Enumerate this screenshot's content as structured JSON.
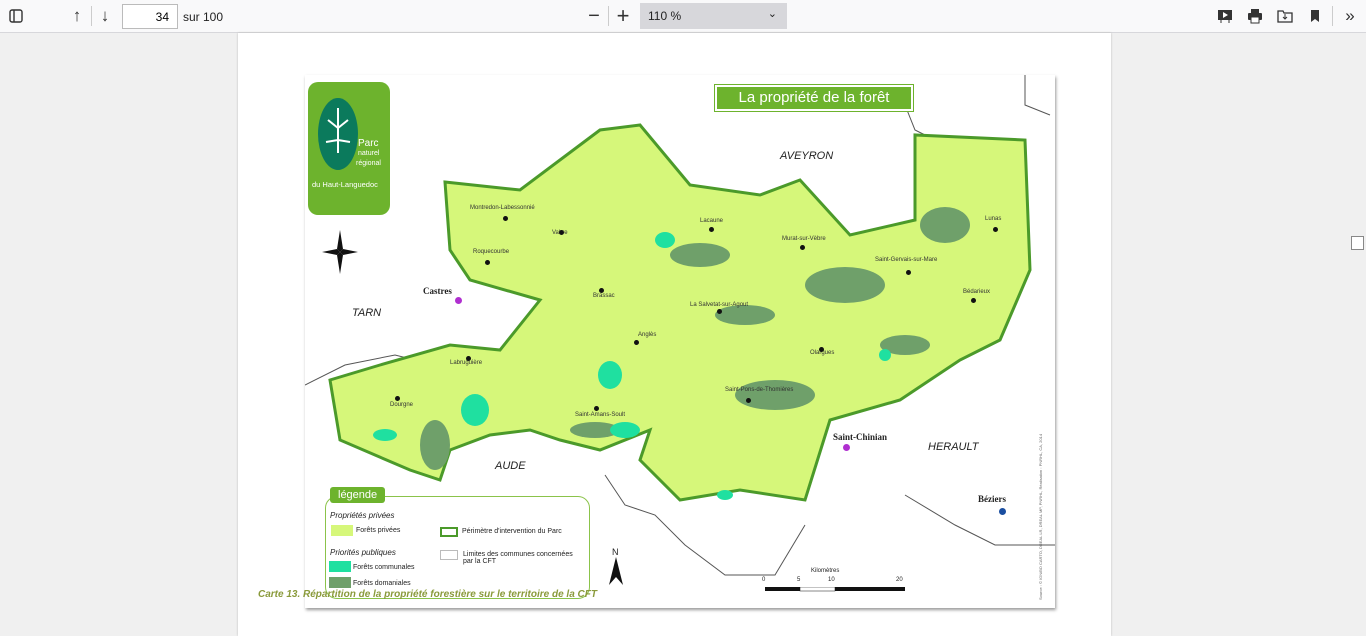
{
  "toolbar": {
    "page_number": "34",
    "page_total": "sur 100",
    "zoom": "110 %",
    "icons": [
      "sidebar-toggle-icon",
      "arrow-up-icon",
      "arrow-down-icon",
      "minus-icon",
      "plus-icon",
      "presentation-icon",
      "print-icon",
      "save-icon",
      "bookmark-icon",
      "double-chevron-right-icon"
    ]
  },
  "map": {
    "title": "La propriété de la forêt",
    "logo": {
      "line1": "Parc",
      "line2": "naturel",
      "line3": "régional",
      "line4": "du Haut-Languedoc"
    },
    "regions": {
      "aveyron": "AVEYRON",
      "tarn": "TARN",
      "herault": "HERAULT",
      "aude": "AUDE"
    },
    "major_towns": {
      "castres": "Castres",
      "saint_chinian": "Saint-Chinian",
      "beziers": "Béziers"
    },
    "towns": [
      "Montredon-Labessonnié",
      "Vabre",
      "Lacaune",
      "Murat-sur-Vèbre",
      "Roquecourbe",
      "Brassac",
      "Saint-Gervais-sur-Mare",
      "Lunas",
      "La Salvetat-sur-Agout",
      "Bédarieux",
      "Anglès",
      "Olargues",
      "Labruguière",
      "Saint-Pons-de-Thomières",
      "Dourgne",
      "Saint-Amans-Soult"
    ],
    "legend": {
      "tab": "légende",
      "private_heading": "Propriétés privées",
      "private_forests": "Forêts privées",
      "public_heading": "Priorités publiques",
      "communal": "Forêts communales",
      "domanial": "Forêts domaniales",
      "perimeter": "Périmètre d'intervention du Parc",
      "limits": "Limites des communes concernées par la CFT"
    },
    "colors": {
      "private": "#d6f77a",
      "communal": "#1fe0a0",
      "domanial": "#6fa06a",
      "perimeter": "#4b9a2a"
    },
    "north": "N",
    "scale": {
      "label": "Kilomètres",
      "ticks": [
        "0",
        "5",
        "10",
        "20"
      ]
    },
    "source": "Source : © IGN/BD CARTO, DREAL LR, DREAL MP, PNRHL, Réalisation : PNRHL, CA, 2014"
  },
  "caption": "Carte 13. Répartition de la propriété forestière sur le territoire de la CFT"
}
